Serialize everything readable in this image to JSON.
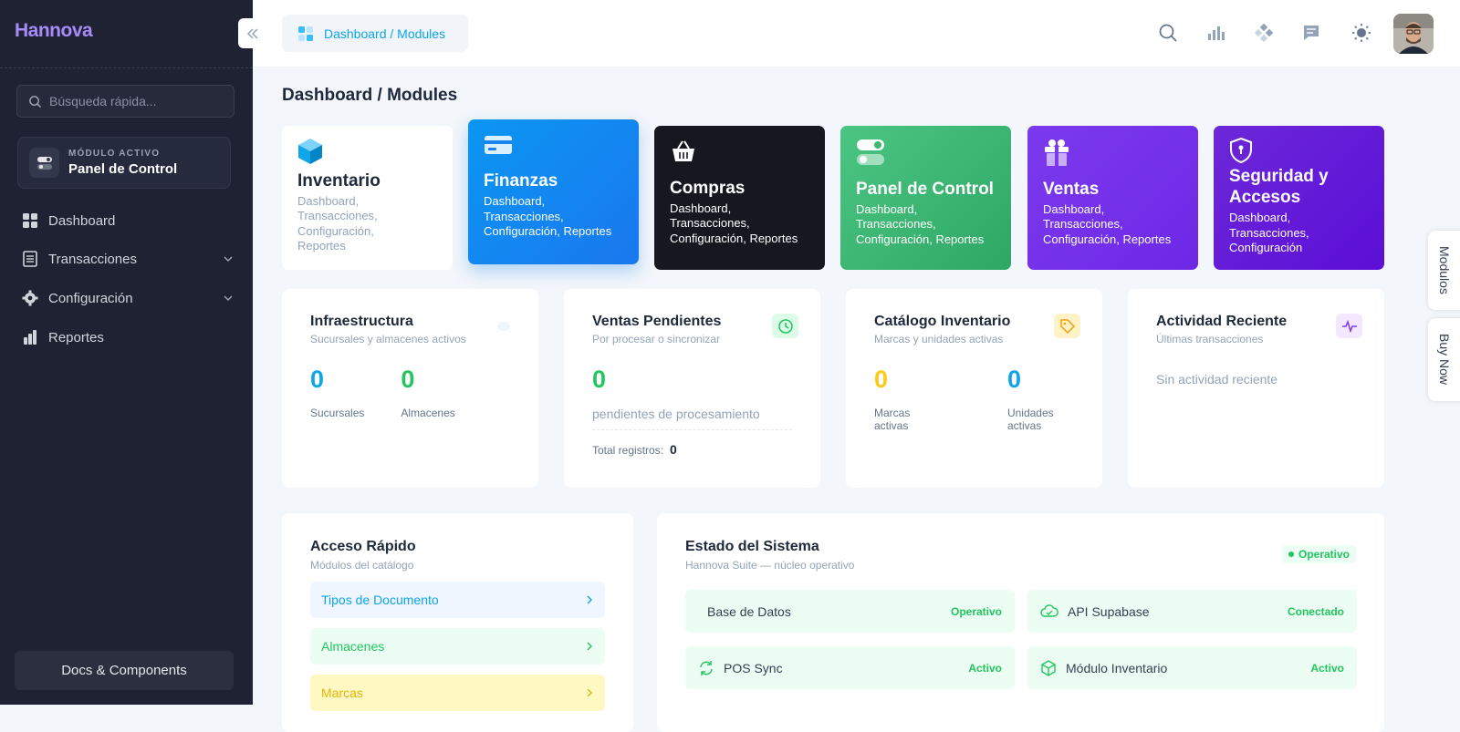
{
  "sidebar": {
    "brand": "Hannova",
    "search_placeholder": "Búsqueda rápida...",
    "active_module": {
      "label": "MÓDULO ACTIVO",
      "name": "Panel de Control"
    },
    "nav": [
      "Dashboard",
      "Transacciones",
      "Configuración",
      "Reportes"
    ],
    "footer_link": "Docs & Components"
  },
  "header": {
    "breadcrumb": "Dashboard / Modules"
  },
  "page_title": "Dashboard / Modules",
  "modules": [
    {
      "title": "Inventario",
      "description": "Dashboard, Transacciones, Configuración, Reportes"
    },
    {
      "title": "Finanzas",
      "description": "Dashboard, Transacciones, Configuración, Reportes"
    },
    {
      "title": "Compras",
      "description": "Dashboard, Transacciones, Configuración, Reportes"
    },
    {
      "title": "Panel de Control",
      "description": "Dashboard, Transacciones, Configuración, Reportes"
    },
    {
      "title": "Ventas",
      "description": "Dashboard, Transacciones, Configuración, Reportes"
    },
    {
      "title": "Seguridad y Accesos",
      "description": "Dashboard, Transacciones, Configuración"
    }
  ],
  "stats": [
    {
      "title": "Infraestructura",
      "subtitle": "Sucursales y almacenes activos",
      "metrics": [
        {
          "value": 0,
          "label": "Sucursales"
        },
        {
          "value": 0,
          "label": "Almacenes"
        }
      ]
    },
    {
      "title": "Ventas Pendientes",
      "subtitle": "Por procesar o sincronizar",
      "metrics": [
        {
          "value": 0,
          "label": "pendientes de procesamiento"
        }
      ],
      "total_label": "Total registros:",
      "total": 0
    },
    {
      "title": "Catálogo Inventario",
      "subtitle": "Marcas y unidades activas",
      "metrics": [
        {
          "value": 0,
          "label": "Marcas activas"
        },
        {
          "value": 0,
          "label": "Unidades activas"
        }
      ]
    },
    {
      "title": "Actividad Reciente",
      "subtitle": "Últimas transacciones",
      "empty": "Sin actividad reciente"
    }
  ],
  "quick_access": {
    "title": "Acceso Rápido",
    "subtitle": "Módulos del catálogo",
    "links": [
      "Tipos de Documento",
      "Almacenes",
      "Marcas"
    ]
  },
  "system_status": {
    "title": "Estado del Sistema",
    "subtitle": "Hannova Suite — núcleo operativo",
    "badge": "Operativo",
    "services": [
      {
        "name": "Base de Datos",
        "status": "Operativo"
      },
      {
        "name": "API Supabase",
        "status": "Conectado"
      },
      {
        "name": "POS Sync",
        "status": "Activo"
      },
      {
        "name": "Módulo Inventario",
        "status": "Activo"
      }
    ]
  },
  "side_tabs": [
    "Modulos",
    "Buy Now"
  ]
}
